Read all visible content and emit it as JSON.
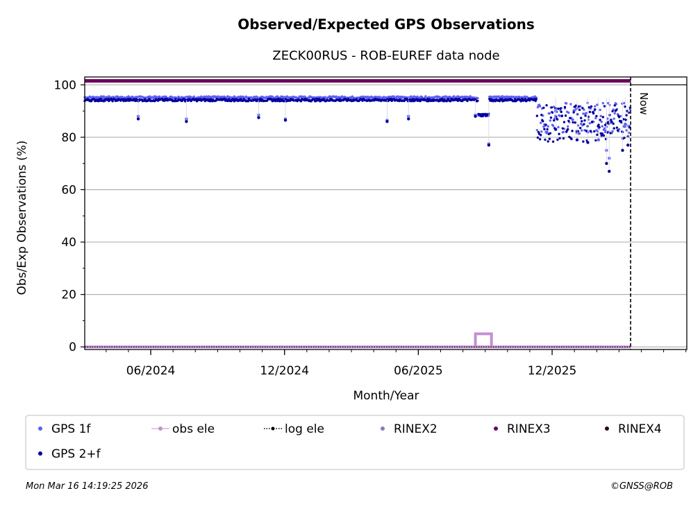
{
  "chart_data": {
    "type": "scatter",
    "title": "Observed/Expected GPS Observations",
    "subtitle": "ZECK00RUS - ROB-EUREF data node",
    "xlabel": "Month/Year",
    "ylabel": "Obs/Exp Observations (%)",
    "x_ticks": [
      "06/2024",
      "12/2024",
      "06/2025",
      "12/2025"
    ],
    "y_ticks": [
      0,
      20,
      40,
      60,
      80,
      100
    ],
    "ylim": [
      -1,
      103
    ],
    "x_range_months": [
      2024.17,
      2026.42
    ],
    "now_label": "Now",
    "now_month": 2026.21,
    "grid": "horizontal",
    "legend": {
      "placement": "bottom",
      "entries": [
        {
          "label": "GPS 1f",
          "color": "#6060f0",
          "marker": "dot"
        },
        {
          "label": "obs ele",
          "color": "#c58fd3",
          "marker": "line-dot"
        },
        {
          "label": "log ele",
          "color": "#000000",
          "marker": "dotted-line-dot"
        },
        {
          "label": "RINEX2",
          "color": "#7f7fbf",
          "marker": "dot"
        },
        {
          "label": "RINEX3",
          "color": "#6b005a",
          "marker": "dot"
        },
        {
          "label": "RINEX4",
          "color": "#2a0a1f",
          "marker": "dot"
        },
        {
          "label": "GPS 2+f",
          "color": "#00009c",
          "marker": "dot"
        }
      ]
    },
    "series": [
      {
        "name": "RINEX3",
        "color": "#6b005a",
        "level": 101.5,
        "from": 2024.17,
        "to": 2026.21
      },
      {
        "name": "GPS 1f",
        "color": "#6060f0",
        "typical": 95.2,
        "dips": [
          [
            2024.37,
            88
          ],
          [
            2024.55,
            87
          ],
          [
            2024.82,
            88.5
          ],
          [
            2024.92,
            87
          ],
          [
            2025.3,
            86.5
          ],
          [
            2025.38,
            88
          ],
          [
            2025.63,
            88.5
          ],
          [
            2025.68,
            77.5
          ],
          [
            2025.93,
            90
          ],
          [
            2026.05,
            82
          ],
          [
            2026.09,
            79
          ],
          [
            2026.12,
            75
          ],
          [
            2026.13,
            72
          ],
          [
            2026.19,
            85
          ]
        ]
      },
      {
        "name": "GPS 2+f",
        "color": "#00009c",
        "typical": 94.2,
        "dips": [
          [
            2024.37,
            87
          ],
          [
            2024.55,
            86
          ],
          [
            2024.82,
            87.5
          ],
          [
            2024.92,
            86.5
          ],
          [
            2025.3,
            86
          ],
          [
            2025.38,
            87
          ],
          [
            2025.63,
            88
          ],
          [
            2025.68,
            77
          ],
          [
            2025.93,
            83
          ],
          [
            2026.01,
            79
          ],
          [
            2026.05,
            78
          ],
          [
            2026.12,
            70
          ],
          [
            2026.13,
            67
          ],
          [
            2026.18,
            75
          ],
          [
            2026.2,
            77
          ]
        ]
      },
      {
        "name": "obs ele",
        "color": "#c58fd3",
        "level": 0,
        "bump": {
          "from": 2025.63,
          "to": 2025.69,
          "value": 5
        }
      },
      {
        "name": "log ele",
        "color": "#000000",
        "level": 0
      }
    ]
  },
  "footer": {
    "timestamp": "Mon Mar 16 14:19:25 2026",
    "copyright": "©GNSS@ROB"
  }
}
